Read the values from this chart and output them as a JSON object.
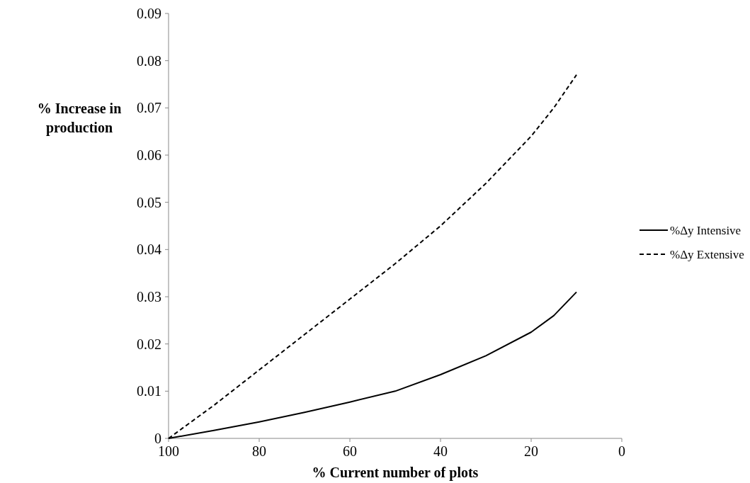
{
  "chart_data": {
    "type": "line",
    "xlabel": "% Current number of plots",
    "ylabel": "% Increase in production",
    "x": [
      100,
      90,
      80,
      70,
      60,
      50,
      40,
      30,
      20,
      15,
      10
    ],
    "series": [
      {
        "name": "%Δy Intensive",
        "color": "#000000",
        "line_style": "solid",
        "values": [
          0,
          0.0017,
          0.0035,
          0.0055,
          0.0077,
          0.01,
          0.0135,
          0.0175,
          0.0225,
          0.026,
          0.031
        ]
      },
      {
        "name": "%Δy Extensive",
        "color": "#000000",
        "line_style": "dashed",
        "values": [
          0,
          0.007,
          0.0145,
          0.022,
          0.0295,
          0.037,
          0.045,
          0.054,
          0.064,
          0.07,
          0.077
        ]
      }
    ],
    "xlim": [
      100,
      0
    ],
    "xticks": [
      100,
      80,
      60,
      40,
      20,
      0
    ],
    "ylim": [
      0,
      0.09
    ],
    "yticks": [
      0,
      0.01,
      0.02,
      0.03,
      0.04,
      0.05,
      0.06,
      0.07,
      0.08,
      0.09
    ],
    "grid": false,
    "legend": "right"
  }
}
